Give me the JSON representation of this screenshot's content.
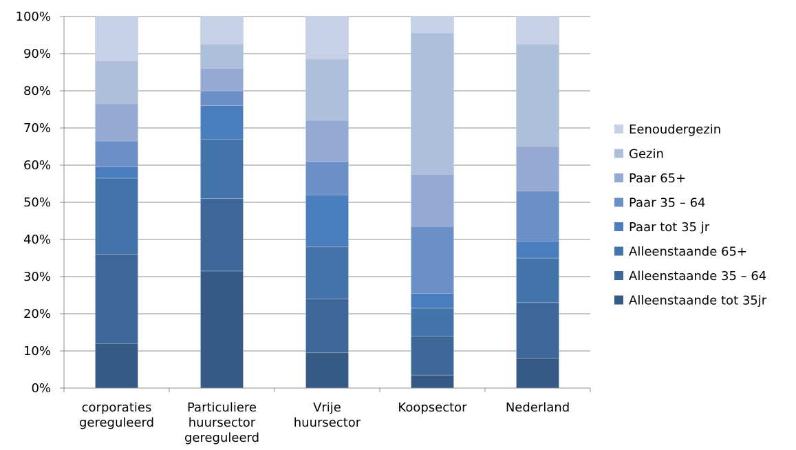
{
  "chart_data": {
    "type": "bar",
    "stacked": true,
    "percent": true,
    "categories": [
      [
        "corporaties",
        "gereguleerd"
      ],
      [
        "Particuliere",
        "huursector",
        "gereguleerd"
      ],
      [
        "Vrije",
        "huursector"
      ],
      [
        "Koopsector"
      ],
      [
        "Nederland"
      ]
    ],
    "ylim": [
      0,
      100
    ],
    "yticks": [
      "0%",
      "10%",
      "20%",
      "30%",
      "40%",
      "50%",
      "60%",
      "70%",
      "80%",
      "90%",
      "100%"
    ],
    "grid": true,
    "legend_position": "right",
    "series": [
      {
        "name": "Alleenstaande tot 35jr",
        "color": "#355a85",
        "values": [
          12,
          31.5,
          9.5,
          3.5,
          8
        ]
      },
      {
        "name": "Alleenstaande 35 – 64",
        "color": "#3d6699",
        "values": [
          24,
          19.5,
          14.5,
          10.5,
          15
        ]
      },
      {
        "name": "Alleenstaande 65+",
        "color": "#4274aa",
        "values": [
          20.5,
          16,
          14,
          7.5,
          12
        ]
      },
      {
        "name": "Paar tot 35 jr",
        "color": "#4a7dbd",
        "values": [
          3,
          9,
          14,
          4,
          4.5
        ]
      },
      {
        "name": "Paar 35 – 64",
        "color": "#6b8fc7",
        "values": [
          7,
          4,
          9,
          18,
          13.5
        ]
      },
      {
        "name": "Paar 65+",
        "color": "#94a9d3",
        "values": [
          10,
          6,
          11,
          14,
          12
        ]
      },
      {
        "name": "Gezin",
        "color": "#aebfdc",
        "values": [
          11.5,
          6.5,
          16.5,
          38,
          27.5
        ]
      },
      {
        "name": "Eenoudergezin",
        "color": "#c6d1e7",
        "values": [
          12,
          7.5,
          11.5,
          4.5,
          7.5
        ]
      }
    ]
  }
}
